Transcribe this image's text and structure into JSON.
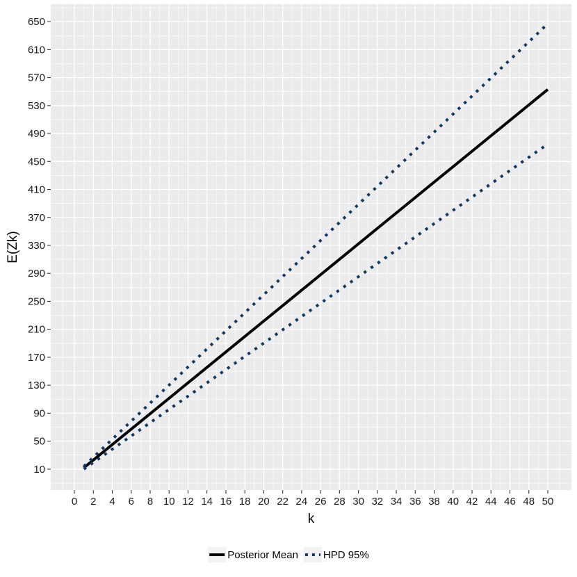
{
  "chart_data": {
    "type": "line",
    "xlabel": "k",
    "ylabel": "E(Zk)",
    "xlim": [
      -2.5,
      52.5
    ],
    "ylim": [
      -20,
      675
    ],
    "x_ticks": [
      0,
      2,
      4,
      6,
      8,
      10,
      12,
      14,
      16,
      18,
      20,
      22,
      24,
      26,
      28,
      30,
      32,
      34,
      36,
      38,
      40,
      42,
      44,
      46,
      48,
      50
    ],
    "y_ticks": [
      10,
      50,
      90,
      130,
      170,
      210,
      250,
      290,
      330,
      370,
      410,
      450,
      490,
      530,
      570,
      610,
      650
    ],
    "grid": true,
    "background_color": "#ebebeb",
    "legend_position": "bottom",
    "series": [
      {
        "name": "Posterior Mean",
        "style": "solid",
        "color": "#000000",
        "x": [
          1,
          50
        ],
        "y": [
          12,
          553
        ]
      },
      {
        "name": "HPD 95%",
        "style": "dotted",
        "color": "#0d3a66",
        "x": [
          1,
          50
        ],
        "y": [
          14,
          647
        ]
      },
      {
        "name": "",
        "style": "dotted",
        "color": "#0d3a66",
        "x": [
          1,
          50
        ],
        "y": [
          10,
          475
        ]
      }
    ],
    "legend": [
      {
        "label": "Posterior Mean",
        "style": "solid",
        "color": "#000000"
      },
      {
        "label": "HPD 95%",
        "style": "dotted",
        "color": "#0d3a66"
      }
    ]
  }
}
